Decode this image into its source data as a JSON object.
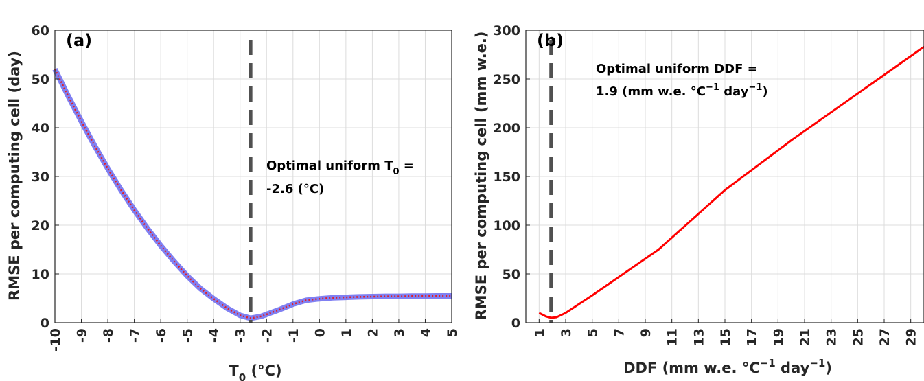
{
  "chart_data": [
    {
      "type": "line",
      "panel_label": "(a)",
      "xlabel": "T",
      "xlabel_sub": "0",
      "xlabel_suffix": " (°C)",
      "ylabel": "RMSE per computing cell (day)",
      "xlim": [
        -10,
        5
      ],
      "ylim": [
        0,
        60
      ],
      "xticks": [
        -10,
        -9,
        -8,
        -7,
        -6,
        -5,
        -4,
        -3,
        -2,
        -1,
        0,
        1,
        2,
        3,
        4,
        5
      ],
      "yticks": [
        0,
        10,
        20,
        30,
        40,
        50,
        60
      ],
      "grid": true,
      "vline_x": -2.6,
      "annotation_line1": "Optimal uniform T",
      "annotation_sub": "0",
      "annotation_eq": " =",
      "annotation_line2": "-2.6 (°C)",
      "series": [
        {
          "color": "#6a6af0",
          "style": "band",
          "x": [
            -10,
            -9.5,
            -9,
            -8.5,
            -8,
            -7.5,
            -7,
            -6.5,
            -6,
            -5.5,
            -5,
            -4.5,
            -4,
            -3.5,
            -3,
            -2.6,
            -2.2,
            -2,
            -1.5,
            -1,
            -0.5,
            0,
            0.5,
            1,
            1.5,
            2,
            2.5,
            3,
            3.5,
            4,
            4.5,
            5
          ],
          "y": [
            52,
            46.5,
            41.3,
            36.3,
            31.6,
            27.2,
            23.1,
            19.3,
            15.8,
            12.6,
            9.6,
            7,
            4.9,
            3,
            1.5,
            0.9,
            1.3,
            1.7,
            2.7,
            3.8,
            4.6,
            4.9,
            5.1,
            5.2,
            5.3,
            5.35,
            5.4,
            5.4,
            5.45,
            5.45,
            5.5,
            5.5
          ]
        },
        {
          "color": "#e0202a",
          "style": "dotted",
          "x": [
            -10,
            -9.5,
            -9,
            -8.5,
            -8,
            -7.5,
            -7,
            -6.5,
            -6,
            -5.5,
            -5,
            -4.5,
            -4,
            -3.5,
            -3,
            -2.6,
            -2.2,
            -2,
            -1.5,
            -1,
            -0.5,
            0,
            0.5,
            1,
            1.5,
            2,
            2.5,
            3,
            3.5,
            4,
            4.5,
            5
          ],
          "y": [
            52,
            46.5,
            41.3,
            36.3,
            31.6,
            27.2,
            23.1,
            19.3,
            15.8,
            12.6,
            9.6,
            7,
            4.9,
            3,
            1.5,
            0.9,
            1.3,
            1.7,
            2.7,
            3.8,
            4.6,
            4.9,
            5.1,
            5.2,
            5.3,
            5.35,
            5.4,
            5.4,
            5.45,
            5.45,
            5.5,
            5.5
          ]
        }
      ]
    },
    {
      "type": "line",
      "panel_label": "(b)",
      "xlabel": "DDF (mm w.e. °C",
      "xlabel_sup1": "−1",
      "xlabel_mid": " day",
      "xlabel_sup2": "−1",
      "xlabel_end": ")",
      "ylabel": "RMSE per computing cell (mm w.e.)",
      "xlim": [
        0,
        30
      ],
      "ylim": [
        0,
        300
      ],
      "xticks": [
        1,
        3,
        5,
        7,
        9,
        11,
        13,
        15,
        17,
        19,
        21,
        23,
        25,
        27,
        29
      ],
      "yticks": [
        0,
        50,
        100,
        150,
        200,
        250,
        300
      ],
      "grid": true,
      "vline_x": 1.9,
      "annotation_line1": "Optimal uniform DDF =",
      "annotation_line2_pre": "1.9 (mm w.e. °C",
      "annotation_sup1": "−1",
      "annotation_mid": " day",
      "annotation_sup2": "−1",
      "annotation_end": ")",
      "series": [
        {
          "color": "#ff0000",
          "style": "solid",
          "x": [
            1,
            1.5,
            1.9,
            2.3,
            3,
            5,
            10,
            15,
            20,
            25,
            30
          ],
          "y": [
            10,
            6.5,
            5,
            5.5,
            10,
            28,
            75,
            136,
            187,
            235,
            283
          ]
        }
      ]
    }
  ]
}
